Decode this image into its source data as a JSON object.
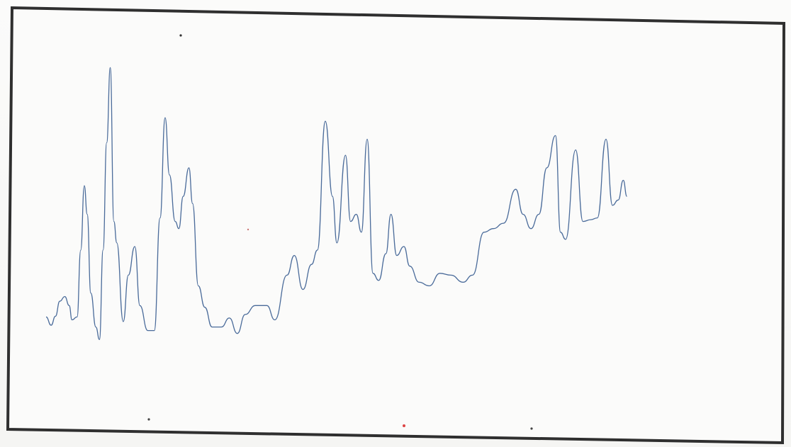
{
  "chart_data": {
    "type": "line",
    "title": "",
    "xlabel": "",
    "ylabel": "",
    "grid": false,
    "legend": "none",
    "xlim": [
      0,
      100
    ],
    "ylim": [
      0,
      100
    ],
    "series": [
      {
        "color": "#4a6b9a",
        "points": [
          [
            0.0,
            21.3
          ],
          [
            0.7,
            19.0
          ],
          [
            1.3,
            21.5
          ],
          [
            1.9,
            25.7
          ],
          [
            2.6,
            27.0
          ],
          [
            3.2,
            24.5
          ],
          [
            3.6,
            20.5
          ],
          [
            4.3,
            21.3
          ],
          [
            4.8,
            40.0
          ],
          [
            5.3,
            58.0
          ],
          [
            5.7,
            50.0
          ],
          [
            6.2,
            28.0
          ],
          [
            6.9,
            18.5
          ],
          [
            7.4,
            15.0
          ],
          [
            7.9,
            40.0
          ],
          [
            8.4,
            70.0
          ],
          [
            8.9,
            91.0
          ],
          [
            9.4,
            48.0
          ],
          [
            9.8,
            42.0
          ],
          [
            10.7,
            20.0
          ],
          [
            11.4,
            33.0
          ],
          [
            12.3,
            41.0
          ],
          [
            13.0,
            24.5
          ],
          [
            14.1,
            17.5
          ],
          [
            15.0,
            17.5
          ],
          [
            15.8,
            49.0
          ],
          [
            16.5,
            77.0
          ],
          [
            17.1,
            61.0
          ],
          [
            17.9,
            48.0
          ],
          [
            18.4,
            46.0
          ],
          [
            19.0,
            55.0
          ],
          [
            19.8,
            63.0
          ],
          [
            20.3,
            53.0
          ],
          [
            21.1,
            30.0
          ],
          [
            22.0,
            24.0
          ],
          [
            23.0,
            18.5
          ],
          [
            24.3,
            18.5
          ],
          [
            25.4,
            21.0
          ],
          [
            26.5,
            16.7
          ],
          [
            27.6,
            22.0
          ],
          [
            29.0,
            24.5
          ],
          [
            30.6,
            24.5
          ],
          [
            31.7,
            20.5
          ],
          [
            33.4,
            33.0
          ],
          [
            34.4,
            38.5
          ],
          [
            35.6,
            29.0
          ],
          [
            36.8,
            36.0
          ],
          [
            37.6,
            40.0
          ],
          [
            38.7,
            76.0
          ],
          [
            39.7,
            55.0
          ],
          [
            40.3,
            42.0
          ],
          [
            41.5,
            66.5
          ],
          [
            42.2,
            48.0
          ],
          [
            43.0,
            50.0
          ],
          [
            43.7,
            45.0
          ],
          [
            44.5,
            71.0
          ],
          [
            45.3,
            33.5
          ],
          [
            46.1,
            31.5
          ],
          [
            47.1,
            39.0
          ],
          [
            47.8,
            50.0
          ],
          [
            48.6,
            38.5
          ],
          [
            49.6,
            41.0
          ],
          [
            50.4,
            35.5
          ],
          [
            51.7,
            31.0
          ],
          [
            53.1,
            30.0
          ],
          [
            54.6,
            33.5
          ],
          [
            56.1,
            33.0
          ],
          [
            57.8,
            31.0
          ],
          [
            59.1,
            33.0
          ],
          [
            60.7,
            45.0
          ],
          [
            62.0,
            46.0
          ],
          [
            63.4,
            47.5
          ],
          [
            65.1,
            57.0
          ],
          [
            66.1,
            50.0
          ],
          [
            67.2,
            46.0
          ],
          [
            68.3,
            50.0
          ],
          [
            69.4,
            63.0
          ],
          [
            70.6,
            72.0
          ],
          [
            71.3,
            45.0
          ],
          [
            72.0,
            43.0
          ],
          [
            73.4,
            68.0
          ],
          [
            74.4,
            48.0
          ],
          [
            75.5,
            48.5
          ],
          [
            76.4,
            49.0
          ],
          [
            77.6,
            71.0
          ],
          [
            78.5,
            52.5
          ],
          [
            79.3,
            54.0
          ],
          [
            80.0,
            59.5
          ],
          [
            80.5,
            55.0
          ]
        ]
      }
    ]
  }
}
